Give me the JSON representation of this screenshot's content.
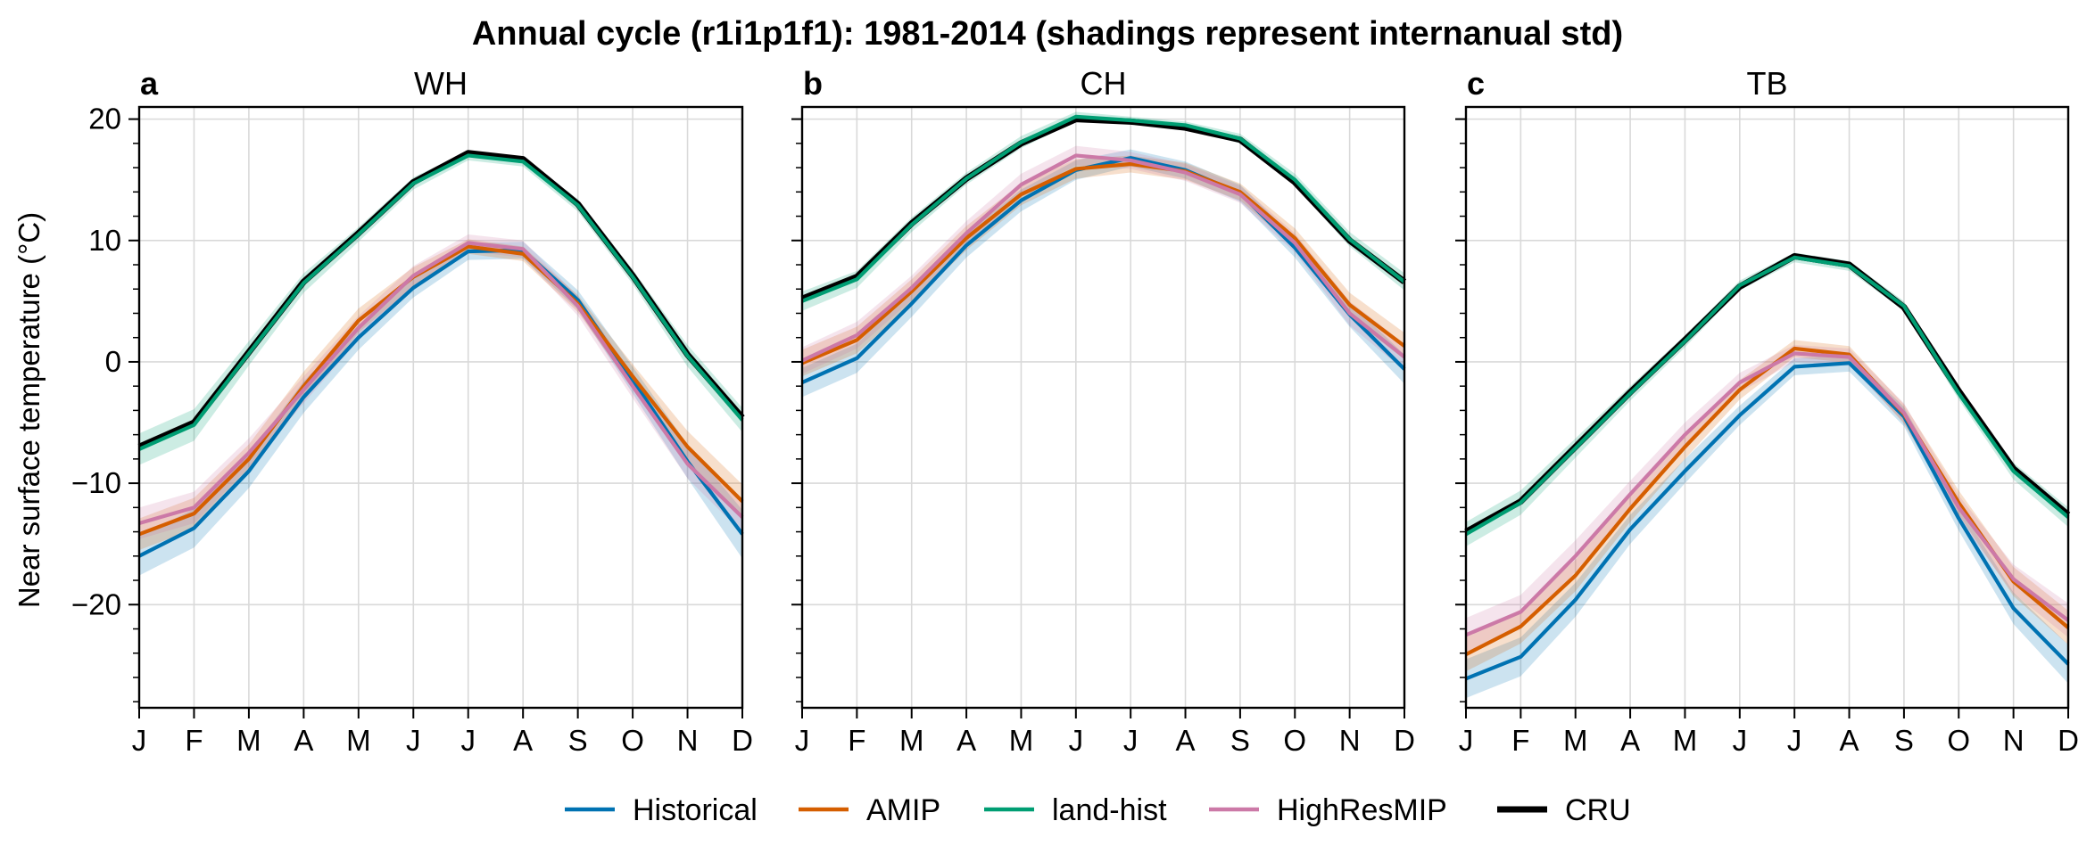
{
  "figure": {
    "title": "Annual cycle (r1i1p1f1): 1981-2014 (shadings represent internanual std)",
    "ylabel": "Near surface temperature (°C)"
  },
  "legend": [
    {
      "name": "Historical",
      "color": "#0072b2"
    },
    {
      "name": "AMIP",
      "color": "#d55e00"
    },
    {
      "name": "land-hist",
      "color": "#009e73"
    },
    {
      "name": "HighResMIP",
      "color": "#cc79a7"
    },
    {
      "name": "CRU",
      "color": "#000000"
    }
  ],
  "chart_data": [
    {
      "type": "line",
      "letter": "a",
      "title": "WH",
      "categories": [
        "J",
        "F",
        "M",
        "A",
        "M",
        "J",
        "J",
        "A",
        "S",
        "O",
        "N",
        "D"
      ],
      "ylim": [
        -28.5,
        21
      ],
      "yticks": [
        20,
        10,
        0,
        -10,
        -20
      ],
      "grid": true,
      "legend_placement": "bottom",
      "series": [
        {
          "name": "Historical",
          "color": "#0072b2",
          "values": [
            -16.0,
            -13.7,
            -9.0,
            -2.9,
            2.0,
            6.1,
            9.1,
            9.2,
            5.1,
            -1.5,
            -8.2,
            -14.2
          ],
          "std": [
            1.6,
            1.6,
            1.4,
            1.3,
            1.0,
            0.8,
            0.7,
            0.7,
            0.8,
            1.1,
            1.4,
            2.0
          ]
        },
        {
          "name": "AMIP",
          "color": "#d55e00",
          "values": [
            -14.2,
            -12.5,
            -8.0,
            -2.0,
            3.4,
            7.0,
            9.5,
            8.9,
            4.8,
            -1.2,
            -7.0,
            -11.5
          ],
          "std": [
            1.3,
            1.3,
            1.2,
            1.2,
            1.0,
            0.8,
            0.6,
            0.6,
            0.7,
            1.0,
            1.3,
            1.4
          ]
        },
        {
          "name": "land-hist",
          "color": "#009e73",
          "values": [
            -7.2,
            -5.2,
            0.7,
            6.5,
            10.5,
            14.7,
            17.0,
            16.5,
            12.9,
            7.0,
            0.5,
            -4.8
          ],
          "std": [
            1.3,
            1.3,
            1.0,
            0.8,
            0.6,
            0.5,
            0.4,
            0.4,
            0.5,
            0.6,
            0.9,
            1.0
          ]
        },
        {
          "name": "HighResMIP",
          "color": "#cc79a7",
          "values": [
            -13.3,
            -12.0,
            -7.5,
            -2.3,
            2.8,
            7.1,
            9.8,
            9.3,
            4.6,
            -2.0,
            -8.4,
            -12.8
          ],
          "std": [
            1.3,
            1.3,
            1.2,
            1.1,
            1.0,
            0.8,
            0.7,
            0.7,
            0.8,
            1.0,
            1.2,
            1.3
          ]
        },
        {
          "name": "CRU",
          "color": "#000000",
          "values": [
            -7.0,
            -5.0,
            0.8,
            6.6,
            10.6,
            14.8,
            17.2,
            16.7,
            13.0,
            7.1,
            0.6,
            -4.6
          ],
          "std": []
        }
      ]
    },
    {
      "type": "line",
      "letter": "b",
      "title": "CH",
      "categories": [
        "J",
        "F",
        "M",
        "A",
        "M",
        "J",
        "J",
        "A",
        "S",
        "O",
        "N",
        "D"
      ],
      "ylim": [
        -28.5,
        21
      ],
      "yticks": [
        20,
        10,
        0,
        -10,
        -20
      ],
      "grid": true,
      "legend_placement": "bottom",
      "series": [
        {
          "name": "Historical",
          "color": "#0072b2",
          "values": [
            -1.7,
            0.3,
            4.8,
            9.6,
            13.3,
            15.8,
            16.8,
            15.8,
            13.9,
            9.4,
            3.9,
            -0.6
          ],
          "std": [
            1.2,
            1.2,
            1.1,
            1.0,
            0.9,
            0.8,
            0.7,
            0.7,
            0.7,
            0.8,
            1.0,
            1.2
          ]
        },
        {
          "name": "AMIP",
          "color": "#d55e00",
          "values": [
            -0.1,
            1.8,
            5.8,
            10.2,
            13.8,
            15.9,
            16.3,
            15.7,
            14.0,
            10.2,
            4.7,
            1.3
          ],
          "std": [
            1.1,
            1.1,
            1.0,
            1.0,
            0.9,
            0.8,
            0.7,
            0.7,
            0.7,
            0.8,
            1.0,
            1.1
          ]
        },
        {
          "name": "land-hist",
          "color": "#009e73",
          "values": [
            5.0,
            6.8,
            11.3,
            15.1,
            18.1,
            20.2,
            19.9,
            19.5,
            18.4,
            15.0,
            10.1,
            6.6
          ],
          "std": [
            0.8,
            0.7,
            0.6,
            0.5,
            0.5,
            0.4,
            0.3,
            0.3,
            0.4,
            0.5,
            0.6,
            0.7
          ]
        },
        {
          "name": "HighResMIP",
          "color": "#cc79a7",
          "values": [
            0.1,
            2.2,
            6.1,
            10.6,
            14.6,
            17.0,
            16.6,
            15.6,
            13.8,
            9.8,
            4.0,
            0.4
          ],
          "std": [
            1.1,
            1.1,
            1.0,
            1.0,
            0.9,
            0.8,
            0.7,
            0.7,
            0.7,
            0.8,
            1.0,
            1.1
          ]
        },
        {
          "name": "CRU",
          "color": "#000000",
          "values": [
            5.2,
            7.0,
            11.4,
            15.1,
            18.0,
            20.0,
            19.8,
            19.3,
            18.3,
            14.8,
            10.0,
            6.6
          ],
          "std": []
        }
      ]
    },
    {
      "type": "line",
      "letter": "c",
      "title": "TB",
      "categories": [
        "J",
        "F",
        "M",
        "A",
        "M",
        "J",
        "J",
        "A",
        "S",
        "O",
        "N",
        "D"
      ],
      "ylim": [
        -28.5,
        21
      ],
      "yticks": [
        20,
        10,
        0,
        -10,
        -20
      ],
      "grid": true,
      "legend_placement": "bottom",
      "series": [
        {
          "name": "Historical",
          "color": "#0072b2",
          "values": [
            -26.1,
            -24.3,
            -19.6,
            -13.8,
            -9.0,
            -4.4,
            -0.4,
            -0.1,
            -4.5,
            -12.9,
            -20.3,
            -24.9
          ],
          "std": [
            1.6,
            1.6,
            1.4,
            1.2,
            1.0,
            0.8,
            0.7,
            0.7,
            0.8,
            1.0,
            1.3,
            1.6
          ]
        },
        {
          "name": "AMIP",
          "color": "#d55e00",
          "values": [
            -24.1,
            -21.8,
            -17.6,
            -12.1,
            -7.0,
            -2.3,
            1.1,
            0.6,
            -4.3,
            -11.6,
            -18.1,
            -21.9
          ],
          "std": [
            1.4,
            1.4,
            1.3,
            1.1,
            1.0,
            0.8,
            0.7,
            0.7,
            0.8,
            1.0,
            1.2,
            1.4
          ]
        },
        {
          "name": "land-hist",
          "color": "#009e73",
          "values": [
            -14.2,
            -11.6,
            -7.1,
            -2.6,
            1.7,
            6.3,
            8.6,
            7.9,
            4.6,
            -2.6,
            -9.0,
            -12.8
          ],
          "std": [
            1.0,
            1.0,
            0.8,
            0.6,
            0.5,
            0.4,
            0.4,
            0.4,
            0.4,
            0.5,
            0.7,
            0.8
          ]
        },
        {
          "name": "HighResMIP",
          "color": "#cc79a7",
          "values": [
            -22.5,
            -20.6,
            -16.0,
            -10.9,
            -6.0,
            -1.7,
            0.7,
            0.4,
            -4.2,
            -12.0,
            -17.9,
            -21.3
          ],
          "std": [
            1.4,
            1.4,
            1.3,
            1.1,
            1.0,
            0.8,
            0.7,
            0.7,
            0.8,
            1.0,
            1.2,
            1.4
          ]
        },
        {
          "name": "CRU",
          "color": "#000000",
          "values": [
            -14.0,
            -11.5,
            -7.0,
            -2.5,
            1.8,
            6.2,
            8.7,
            8.0,
            4.5,
            -2.4,
            -8.8,
            -12.6
          ],
          "std": []
        }
      ]
    }
  ]
}
